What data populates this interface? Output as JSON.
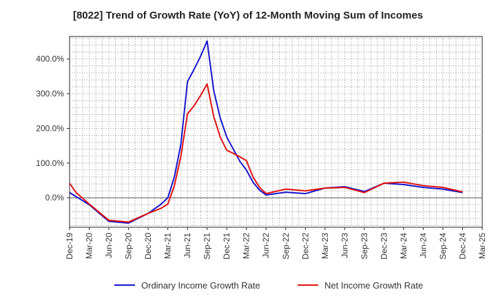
{
  "chart_data": {
    "type": "line",
    "title": "[8022]  Trend of Growth Rate (YoY) of 12-Month Moving Sum of Incomes",
    "xlabel": "",
    "ylabel": "",
    "x_tick_labels": [
      "Dec-19",
      "Mar-20",
      "Jun-20",
      "Sep-20",
      "Dec-20",
      "Mar-21",
      "Jun-21",
      "Sep-21",
      "Dec-21",
      "Mar-22",
      "Jun-22",
      "Sep-22",
      "Dec-22",
      "Mar-23",
      "Jun-23",
      "Sep-23",
      "Dec-23",
      "Mar-24",
      "Jun-24",
      "Sep-24",
      "Dec-24",
      "Mar-25"
    ],
    "y_ticks": [
      0,
      100,
      200,
      300,
      400
    ],
    "y_tick_labels": [
      "0.0%",
      "100.0%",
      "200.0%",
      "300.0%",
      "400.0%"
    ],
    "ylim": [
      -85,
      465
    ],
    "grid": true,
    "legend_position": "bottom",
    "months": [
      "Dec-19",
      "Jan-20",
      "Feb-20",
      "Mar-20",
      "Apr-20",
      "May-20",
      "Jun-20",
      "Jul-20",
      "Aug-20",
      "Sep-20",
      "Oct-20",
      "Nov-20",
      "Dec-20",
      "Jan-21",
      "Feb-21",
      "Mar-21",
      "Apr-21",
      "May-21",
      "Jun-21",
      "Jul-21",
      "Aug-21",
      "Sep-21",
      "Oct-21",
      "Nov-21",
      "Dec-21",
      "Jan-22",
      "Feb-22",
      "Mar-22",
      "Apr-22",
      "May-22",
      "Jun-22",
      "Jul-22",
      "Aug-22",
      "Sep-22",
      "Oct-22",
      "Nov-22",
      "Dec-22",
      "Jan-23",
      "Feb-23",
      "Mar-23",
      "Apr-23",
      "May-23",
      "Jun-23",
      "Jul-23",
      "Aug-23",
      "Sep-23",
      "Oct-23",
      "Nov-23",
      "Dec-23",
      "Jan-24",
      "Feb-24",
      "Mar-24",
      "Apr-24",
      "May-24",
      "Jun-24",
      "Jul-24",
      "Aug-24",
      "Sep-24",
      "Oct-24",
      "Nov-24",
      "Dec-24"
    ],
    "series": [
      {
        "name": "Ordinary Income Growth Rate",
        "color": "#1515cc",
        "points": [
          [
            "Dec-19",
            15
          ],
          [
            "Mar-20",
            -20
          ],
          [
            "Jun-20",
            -68
          ],
          [
            "Sep-20",
            -73
          ],
          [
            "Dec-20",
            -45
          ],
          [
            "Feb-21",
            -18
          ],
          [
            "Mar-21",
            0
          ],
          [
            "Apr-21",
            60
          ],
          [
            "May-21",
            155
          ],
          [
            "Jun-21",
            335
          ],
          [
            "Jul-21",
            370
          ],
          [
            "Aug-21",
            408
          ],
          [
            "Sep-21",
            452
          ],
          [
            "Oct-21",
            310
          ],
          [
            "Nov-21",
            230
          ],
          [
            "Dec-21",
            175
          ],
          [
            "Jan-22",
            140
          ],
          [
            "Feb-22",
            105
          ],
          [
            "Mar-22",
            80
          ],
          [
            "Apr-22",
            45
          ],
          [
            "May-22",
            22
          ],
          [
            "Jun-22",
            8
          ],
          [
            "Sep-22",
            16
          ],
          [
            "Dec-22",
            12
          ],
          [
            "Mar-23",
            28
          ],
          [
            "Jun-23",
            32
          ],
          [
            "Sep-23",
            18
          ],
          [
            "Dec-23",
            42
          ],
          [
            "Mar-24",
            38
          ],
          [
            "Jun-24",
            30
          ],
          [
            "Sep-24",
            25
          ],
          [
            "Dec-24",
            15
          ]
        ]
      },
      {
        "name": "Net Income Growth Rate",
        "color": "#e01010",
        "points": [
          [
            "Dec-19",
            42
          ],
          [
            "Jan-20",
            15
          ],
          [
            "Mar-20",
            -18
          ],
          [
            "Jun-20",
            -65
          ],
          [
            "Sep-20",
            -70
          ],
          [
            "Dec-20",
            -45
          ],
          [
            "Feb-21",
            -30
          ],
          [
            "Mar-21",
            -18
          ],
          [
            "Apr-21",
            35
          ],
          [
            "May-21",
            120
          ],
          [
            "Jun-21",
            242
          ],
          [
            "Jul-21",
            265
          ],
          [
            "Aug-21",
            295
          ],
          [
            "Sep-21",
            328
          ],
          [
            "Oct-21",
            235
          ],
          [
            "Nov-21",
            175
          ],
          [
            "Dec-21",
            137
          ],
          [
            "Jan-22",
            128
          ],
          [
            "Feb-22",
            118
          ],
          [
            "Mar-22",
            107
          ],
          [
            "Apr-22",
            60
          ],
          [
            "May-22",
            30
          ],
          [
            "Jun-22",
            12
          ],
          [
            "Sep-22",
            25
          ],
          [
            "Dec-22",
            20
          ],
          [
            "Mar-23",
            28
          ],
          [
            "Jun-23",
            30
          ],
          [
            "Sep-23",
            15
          ],
          [
            "Dec-23",
            42
          ],
          [
            "Mar-24",
            45
          ],
          [
            "Jun-24",
            35
          ],
          [
            "Sep-24",
            30
          ],
          [
            "Dec-24",
            17
          ]
        ]
      }
    ]
  }
}
